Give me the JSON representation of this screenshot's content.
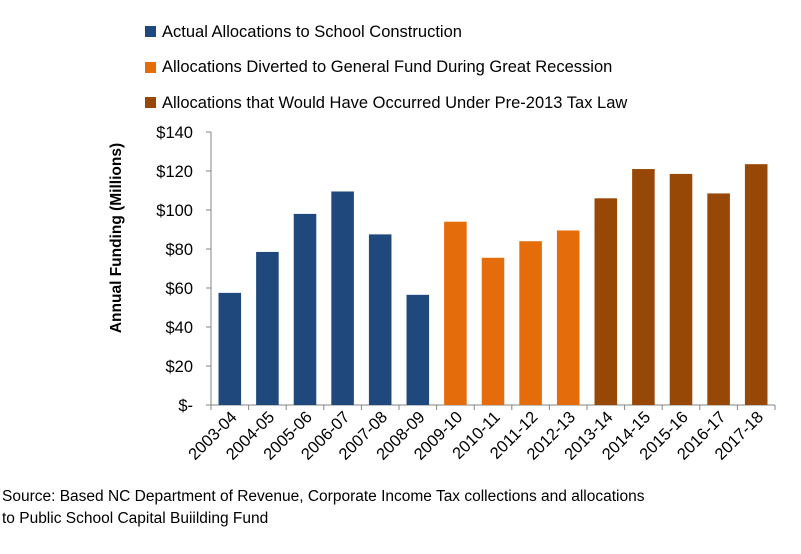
{
  "chart_data": {
    "type": "bar",
    "ylabel": "Annual Funding (Millions)",
    "ylim": [
      0,
      140
    ],
    "yticks": [
      {
        "value": 0,
        "label": "$-"
      },
      {
        "value": 20,
        "label": "$20"
      },
      {
        "value": 40,
        "label": "$40"
      },
      {
        "value": 60,
        "label": "$60"
      },
      {
        "value": 80,
        "label": "$80"
      },
      {
        "value": 100,
        "label": "$100"
      },
      {
        "value": 120,
        "label": "$120"
      },
      {
        "value": 140,
        "label": "$140"
      }
    ],
    "grid": false,
    "legend_position": "top",
    "categories": [
      "2003-04",
      "2004-05",
      "2005-06",
      "2006-07",
      "2007-08",
      "2008-09",
      "2009-10",
      "2010-11",
      "2011-12",
      "2012-13",
      "2013-14",
      "2014-15",
      "2015-16",
      "2016-17",
      "2017-18"
    ],
    "series": [
      {
        "name": "Actual Allocations to School Construction",
        "color": "#1f497d",
        "values": [
          57.5,
          78.5,
          98,
          109.5,
          87.5,
          56.5,
          null,
          null,
          null,
          null,
          null,
          null,
          null,
          null,
          null
        ]
      },
      {
        "name": "Allocations Diverted to General Fund During Great Recession",
        "color": "#e46c0a",
        "values": [
          null,
          null,
          null,
          null,
          null,
          null,
          94,
          75.5,
          84,
          89.5,
          null,
          null,
          null,
          null,
          null
        ]
      },
      {
        "name": "Allocations that Would Have Occurred Under Pre-2013 Tax Law",
        "color": "#974706",
        "values": [
          null,
          null,
          null,
          null,
          null,
          null,
          null,
          null,
          null,
          null,
          106,
          121,
          118.5,
          108.5,
          123.5
        ]
      }
    ]
  },
  "source_note": {
    "line1": "Source: Based NC Department of Revenue, Corporate Income Tax collections and allocations",
    "line2": "to  Public School Capital Buiilding Fund"
  }
}
